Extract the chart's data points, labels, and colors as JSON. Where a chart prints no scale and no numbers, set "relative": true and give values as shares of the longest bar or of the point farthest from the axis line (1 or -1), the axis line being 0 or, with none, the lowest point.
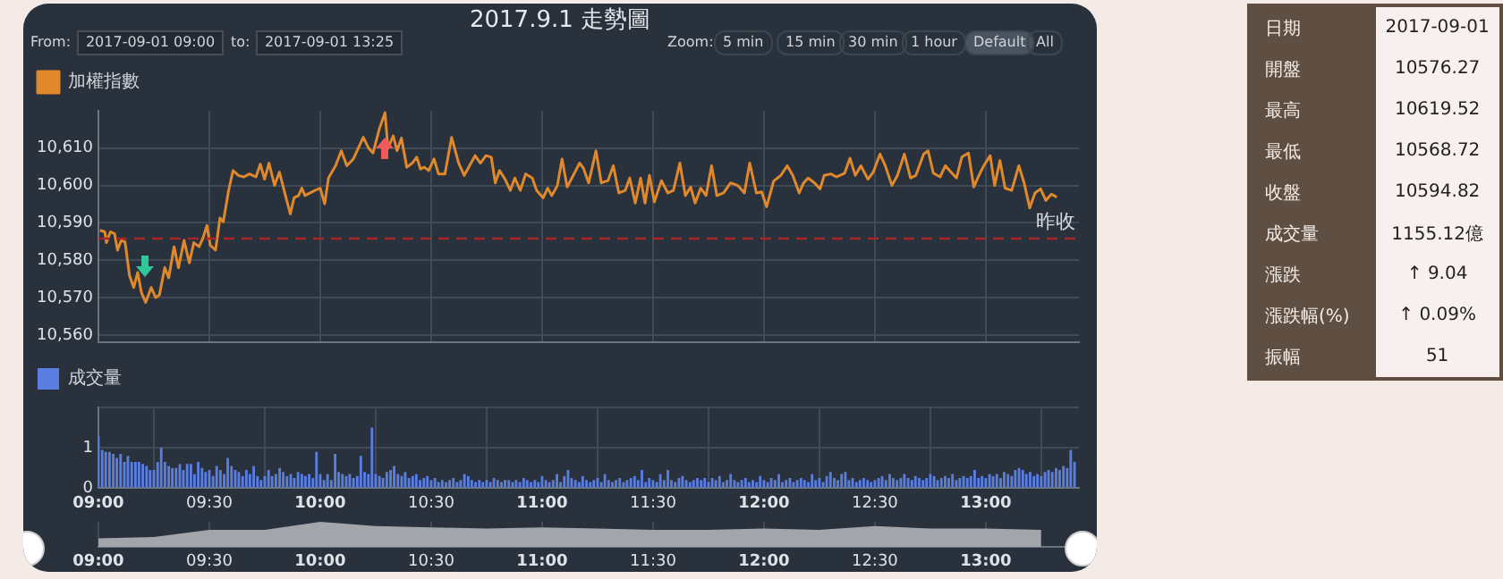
{
  "chart_data": [
    {
      "type": "line",
      "title": "2017.9.1 走勢圖",
      "annotations": [
        "From:",
        "2017-09-01 09:00",
        "to:",
        "2017-09-01 13:25",
        "Zoom:",
        "5 min",
        "15 min",
        "30 min",
        "1 hour",
        "Default",
        "All"
      ],
      "x": [
        9.007,
        9.029,
        9.036,
        9.054,
        9.073,
        9.086,
        9.103,
        9.12,
        9.14,
        9.159,
        9.177,
        9.194,
        9.213,
        9.238,
        9.258,
        9.275,
        9.299,
        9.317,
        9.341,
        9.361,
        9.386,
        9.41,
        9.43,
        9.454,
        9.472,
        9.489,
        9.504,
        9.528,
        9.548,
        9.563,
        9.587,
        9.607,
        9.631,
        9.656,
        9.681,
        9.71,
        9.73,
        9.749,
        9.769,
        9.794,
        9.816,
        9.84,
        9.865,
        9.882,
        9.902,
        9.917,
        9.931,
        9.976,
        10.0,
        10.02,
        10.037,
        10.069,
        10.095,
        10.12,
        10.149,
        10.194,
        10.218,
        10.238,
        10.267,
        10.292,
        10.305,
        10.329,
        10.346,
        10.366,
        10.39,
        10.415,
        10.435,
        10.452,
        10.469,
        10.489,
        10.513,
        10.533,
        10.562,
        10.592,
        10.624,
        10.649,
        10.673,
        10.698,
        10.722,
        10.747,
        10.771,
        10.789,
        10.808,
        10.833,
        10.857,
        10.877,
        10.902,
        10.926,
        10.956,
        10.975,
        11.005,
        11.025,
        11.044,
        11.069,
        11.09,
        11.113,
        11.137,
        11.169,
        11.186,
        11.21,
        11.243,
        11.267,
        11.297,
        11.321,
        11.346,
        11.375,
        11.395,
        11.42,
        11.444,
        11.464,
        11.484,
        11.506,
        11.538,
        11.567,
        11.592,
        11.621,
        11.646,
        11.67,
        11.69,
        11.715,
        11.739,
        11.764,
        11.788,
        11.818,
        11.85,
        11.882,
        11.912,
        11.936,
        11.966,
        11.99,
        12.012,
        12.044,
        12.076,
        12.105,
        12.13,
        12.159,
        12.179,
        12.199,
        12.228,
        12.253,
        12.272,
        12.302,
        12.327,
        12.364,
        12.388,
        12.412,
        12.437,
        12.469,
        12.493,
        12.523,
        12.547,
        12.577,
        12.602,
        12.633,
        12.661,
        12.685,
        12.72,
        12.74,
        12.764,
        12.794,
        12.818,
        12.843,
        12.868,
        12.892,
        12.922,
        12.946,
        12.966,
        12.991,
        13.02,
        13.04,
        13.064,
        13.087,
        13.117,
        13.149,
        13.173,
        13.198,
        13.222,
        13.247,
        13.271,
        13.296,
        13.32
      ],
      "series": [
        {
          "name": "加權指數",
          "color": "#e0892c",
          "values": [
            10588,
            10587.6,
            10584.7,
            10587.6,
            10587.1,
            10582.7,
            10585.3,
            10584.9,
            10576,
            10572.7,
            10576.7,
            10571.3,
            10568.7,
            10572.7,
            10570,
            10570.7,
            10578,
            10575.3,
            10583.6,
            10578,
            10585.3,
            10579.3,
            10584.7,
            10583.6,
            10586,
            10589.3,
            10584,
            10582.7,
            10591.3,
            10590.3,
            10598.7,
            10604,
            10602.7,
            10602.3,
            10603.1,
            10602.3,
            10605.7,
            10601.7,
            10606,
            10600,
            10603.6,
            10598,
            10592.4,
            10596.7,
            10597.3,
            10599.3,
            10597.3,
            10598.7,
            10599.3,
            10595.1,
            10602,
            10605.3,
            10609.3,
            10605.3,
            10607.1,
            10612.9,
            10610,
            10608.7,
            10615.3,
            10619.5,
            10610,
            10613.3,
            10609.3,
            10612.7,
            10604.9,
            10606,
            10607.6,
            10604.4,
            10604.9,
            10604,
            10607.1,
            10603.1,
            10603.1,
            10612.9,
            10606,
            10602.7,
            10605.3,
            10608,
            10606,
            10608,
            10607.6,
            10600.7,
            10604,
            10601.7,
            10598.7,
            10602,
            10598.7,
            10603.1,
            10602,
            10598.7,
            10596.7,
            10599.3,
            10597.3,
            10600,
            10607.1,
            10599.6,
            10602.3,
            10606,
            10604.7,
            10600.7,
            10609.3,
            10600.7,
            10601.3,
            10605.3,
            10598,
            10598.7,
            10602,
            10595.3,
            10602,
            10595.3,
            10602.7,
            10595.6,
            10601.3,
            10598,
            10598.7,
            10606,
            10597.3,
            10599.6,
            10595.3,
            10599.3,
            10597.3,
            10605.3,
            10597.3,
            10598,
            10600.7,
            10600,
            10598,
            10606,
            10598,
            10598.3,
            10594.3,
            10601.2,
            10602.7,
            10605.3,
            10602.7,
            10598,
            10600.7,
            10602,
            10600.7,
            10599.1,
            10602.7,
            10603.1,
            10602.3,
            10603.3,
            10607.3,
            10602.7,
            10605.3,
            10601.7,
            10603.6,
            10608.4,
            10605.3,
            10600,
            10602.7,
            10608.4,
            10602,
            10602.7,
            10608.4,
            10609.3,
            10603.3,
            10602.3,
            10605.3,
            10603.6,
            10602,
            10607.6,
            10608.7,
            10599.6,
            10602.3,
            10605.3,
            10608,
            10600,
            10606.7,
            10599.3,
            10598.7,
            10605.3,
            10600.7,
            10594,
            10598,
            10599.1,
            10596,
            10597.7,
            10596.9
          ]
        }
      ],
      "xlim": [
        9,
        13.42
      ],
      "xticks": [
        {
          "value": 9,
          "label": null
        },
        {
          "value": 9.5,
          "label": null
        },
        {
          "value": 10,
          "label": null
        },
        {
          "value": 10.5,
          "label": null
        },
        {
          "value": 11,
          "label": null
        },
        {
          "value": 11.5,
          "label": null
        },
        {
          "value": 12,
          "label": null
        },
        {
          "value": 12.5,
          "label": null
        },
        {
          "value": 13,
          "label": null
        }
      ],
      "ylim": [
        10558,
        10620
      ],
      "yticks": [
        {
          "value": 10560,
          "label": "10,560"
        },
        {
          "value": 10570,
          "label": "10,570"
        },
        {
          "value": 10580,
          "label": "10,580"
        },
        {
          "value": 10590,
          "label": "10,590"
        },
        {
          "value": 10600,
          "label": "10,600"
        },
        {
          "value": 10610,
          "label": "10,610"
        }
      ],
      "tick_labels": "y",
      "grid": true,
      "legend": "top left",
      "marker": "none",
      "ref_lines": [
        {
          "axis": "y",
          "value": 10585.8,
          "label": "昨收",
          "color": "#a8262a",
          "line_style": "dashed"
        }
      ]
    },
    {
      "type": "bar",
      "x": [
        9,
        9.017,
        9.033,
        9.05,
        9.067,
        9.083,
        9.1,
        9.117,
        9.133,
        9.15,
        9.167,
        9.183,
        9.2,
        9.217,
        9.233,
        9.25,
        9.267,
        9.283,
        9.3,
        9.317,
        9.333,
        9.35,
        9.367,
        9.383,
        9.4,
        9.417,
        9.433,
        9.45,
        9.467,
        9.483,
        9.5,
        9.517,
        9.533,
        9.55,
        9.567,
        9.583,
        9.6,
        9.617,
        9.633,
        9.65,
        9.667,
        9.683,
        9.7,
        9.717,
        9.733,
        9.75,
        9.767,
        9.783,
        9.8,
        9.817,
        9.833,
        9.85,
        9.867,
        9.883,
        9.9,
        9.917,
        9.933,
        9.95,
        9.967,
        9.983,
        10,
        10.017,
        10.033,
        10.05,
        10.067,
        10.083,
        10.1,
        10.117,
        10.133,
        10.15,
        10.167,
        10.183,
        10.2,
        10.217,
        10.233,
        10.25,
        10.267,
        10.283,
        10.3,
        10.317,
        10.333,
        10.35,
        10.367,
        10.383,
        10.4,
        10.417,
        10.433,
        10.45,
        10.467,
        10.483,
        10.5,
        10.517,
        10.533,
        10.55,
        10.567,
        10.583,
        10.6,
        10.617,
        10.633,
        10.65,
        10.667,
        10.683,
        10.7,
        10.717,
        10.733,
        10.75,
        10.767,
        10.783,
        10.8,
        10.817,
        10.833,
        10.85,
        10.867,
        10.883,
        10.9,
        10.917,
        10.933,
        10.95,
        10.967,
        10.983,
        11,
        11.017,
        11.033,
        11.05,
        11.067,
        11.083,
        11.1,
        11.117,
        11.133,
        11.15,
        11.167,
        11.183,
        11.2,
        11.217,
        11.233,
        11.25,
        11.267,
        11.283,
        11.3,
        11.317,
        11.333,
        11.35,
        11.367,
        11.383,
        11.4,
        11.417,
        11.433,
        11.45,
        11.467,
        11.483,
        11.5,
        11.517,
        11.533,
        11.55,
        11.567,
        11.583,
        11.6,
        11.617,
        11.633,
        11.65,
        11.667,
        11.683,
        11.7,
        11.717,
        11.733,
        11.75,
        11.767,
        11.783,
        11.8,
        11.817,
        11.833,
        11.85,
        11.867,
        11.883,
        11.9,
        11.917,
        11.933,
        11.95,
        11.967,
        11.983,
        12,
        12.017,
        12.033,
        12.05,
        12.067,
        12.083,
        12.1,
        12.117,
        12.133,
        12.15,
        12.167,
        12.183,
        12.2,
        12.217,
        12.233,
        12.25,
        12.267,
        12.283,
        12.3,
        12.317,
        12.333,
        12.35,
        12.367,
        12.383,
        12.4,
        12.417,
        12.433,
        12.45,
        12.467,
        12.483,
        12.5,
        12.517,
        12.533,
        12.55,
        12.567,
        12.583,
        12.6,
        12.617,
        12.633,
        12.65,
        12.667,
        12.683,
        12.7,
        12.717,
        12.733,
        12.75,
        12.767,
        12.783,
        12.8,
        12.817,
        12.833,
        12.85,
        12.867,
        12.883,
        12.9,
        12.917,
        12.933,
        12.95,
        12.967,
        12.983,
        13,
        13.017,
        13.033,
        13.05,
        13.067,
        13.083,
        13.1,
        13.117,
        13.133,
        13.15,
        13.167,
        13.183,
        13.2,
        13.217,
        13.233,
        13.25,
        13.267,
        13.283,
        13.3,
        13.317,
        13.333,
        13.35,
        13.367,
        13.383,
        13.4
      ],
      "series": [
        {
          "name": "成交量",
          "color": "#5a7de0",
          "values": [
            1.3,
            0.95,
            0.9,
            0.9,
            0.85,
            0.75,
            0.85,
            0.65,
            0.8,
            0.65,
            0.65,
            0.65,
            0.6,
            0.55,
            0.45,
            0.45,
            0.65,
            1.0,
            0.65,
            0.55,
            0.5,
            0.5,
            0.6,
            0.45,
            0.6,
            0.6,
            0.35,
            0.65,
            0.5,
            0.4,
            0.45,
            0.3,
            0.55,
            0.45,
            0.35,
            0.75,
            0.55,
            0.45,
            0.4,
            0.3,
            0.45,
            0.35,
            0.55,
            0.3,
            0.2,
            0.3,
            0.45,
            0.3,
            0.35,
            0.5,
            0.4,
            0.3,
            0.35,
            0.25,
            0.4,
            0.35,
            0.3,
            0.35,
            0.25,
            0.9,
            0.35,
            0.2,
            0.35,
            0.2,
            0.85,
            0.4,
            0.35,
            0.3,
            0.35,
            0.25,
            0.3,
            0.8,
            0.4,
            0.35,
            1.5,
            0.35,
            0.3,
            0.25,
            0.4,
            0.45,
            0.55,
            0.35,
            0.3,
            0.4,
            0.25,
            0.3,
            0.35,
            0.2,
            0.25,
            0.3,
            0.2,
            0.25,
            0.15,
            0.2,
            0.15,
            0.2,
            0.25,
            0.15,
            0.2,
            0.35,
            0.3,
            0.2,
            0.15,
            0.2,
            0.15,
            0.2,
            0.15,
            0.25,
            0.2,
            0.15,
            0.2,
            0.2,
            0.15,
            0.2,
            0.15,
            0.25,
            0.2,
            0.15,
            0.2,
            0.15,
            0.3,
            0.2,
            0.15,
            0.2,
            0.35,
            0.15,
            0.3,
            0.45,
            0.25,
            0.2,
            0.15,
            0.3,
            0.2,
            0.15,
            0.2,
            0.25,
            0.15,
            0.35,
            0.2,
            0.15,
            0.2,
            0.25,
            0.15,
            0.2,
            0.25,
            0.3,
            0.2,
            0.45,
            0.15,
            0.25,
            0.2,
            0.15,
            0.35,
            0.2,
            0.45,
            0.2,
            0.15,
            0.25,
            0.3,
            0.2,
            0.15,
            0.2,
            0.25,
            0.2,
            0.25,
            0.15,
            0.25,
            0.2,
            0.3,
            0.15,
            0.2,
            0.35,
            0.2,
            0.15,
            0.2,
            0.25,
            0.15,
            0.2,
            0.15,
            0.3,
            0.2,
            0.15,
            0.25,
            0.2,
            0.35,
            0.15,
            0.2,
            0.25,
            0.15,
            0.2,
            0.25,
            0.2,
            0.15,
            0.35,
            0.2,
            0.25,
            0.15,
            0.3,
            0.4,
            0.25,
            0.2,
            0.35,
            0.4,
            0.2,
            0.25,
            0.15,
            0.2,
            0.25,
            0.2,
            0.15,
            0.2,
            0.25,
            0.3,
            0.2,
            0.35,
            0.25,
            0.2,
            0.25,
            0.35,
            0.25,
            0.2,
            0.3,
            0.25,
            0.2,
            0.25,
            0.35,
            0.3,
            0.2,
            0.25,
            0.3,
            0.25,
            0.35,
            0.2,
            0.25,
            0.3,
            0.25,
            0.3,
            0.45,
            0.25,
            0.3,
            0.25,
            0.35,
            0.3,
            0.35,
            0.25,
            0.4,
            0.35,
            0.3,
            0.45,
            0.5,
            0.45,
            0.35,
            0.4,
            0.3,
            0.35,
            0.3,
            0.4,
            0.45,
            0.4,
            0.5,
            0.45,
            0.55,
            0.5,
            0.95,
            0.65
          ]
        }
      ],
      "xlim": [
        9,
        13.42
      ],
      "xticks": [
        {
          "value": 9,
          "label": "09:00"
        },
        {
          "value": 9.5,
          "label": "09:30"
        },
        {
          "value": 10,
          "label": "10:00"
        },
        {
          "value": 10.5,
          "label": "10:30"
        },
        {
          "value": 11,
          "label": "11:00"
        },
        {
          "value": 11.5,
          "label": "11:30"
        },
        {
          "value": 12,
          "label": "12:00"
        },
        {
          "value": 12.5,
          "label": "12:30"
        },
        {
          "value": 13,
          "label": "13:00"
        }
      ],
      "ylim": [
        0,
        2
      ],
      "yticks": [
        0,
        1,
        {
          "value": 2,
          "label": null
        }
      ],
      "grid": true,
      "legend": "top left"
    },
    {
      "type": "area",
      "relative": true,
      "color": "#a2a5aa",
      "x": [
        9,
        9.25,
        9.5,
        9.75,
        10,
        10.25,
        10.5,
        10.75,
        11,
        11.25,
        11.5,
        11.75,
        12,
        12.25,
        12.5,
        12.75,
        13,
        13.25
      ],
      "values": [
        0.34,
        0.39,
        0.68,
        0.68,
        1,
        0.83,
        0.78,
        0.73,
        0.78,
        0.73,
        0.68,
        0.68,
        0.73,
        0.68,
        0.83,
        0.73,
        0.73,
        0.68
      ],
      "xlim": [
        9,
        13.42
      ],
      "xticks": [
        {
          "value": 9,
          "label": "09:00"
        },
        {
          "value": 9.5,
          "label": "09:30"
        },
        {
          "value": 10,
          "label": "10:00"
        },
        {
          "value": 10.5,
          "label": "10:30"
        },
        {
          "value": 11,
          "label": "11:00"
        },
        {
          "value": 11.5,
          "label": "11:30"
        },
        {
          "value": 12,
          "label": "12:00"
        },
        {
          "value": 12.5,
          "label": "12:30"
        },
        {
          "value": 13,
          "label": "13:00"
        }
      ],
      "tick_labels": "x",
      "grid": "x"
    },
    {
      "type": "other",
      "categories": [
        "日期",
        "開盤",
        "最高",
        "最低",
        "收盤",
        "成交量",
        "漲跌",
        "漲跌幅(%)",
        "振幅"
      ],
      "value_labels": [
        "2017-09-01",
        "10576.27",
        "10619.52",
        "10568.72",
        "10594.82",
        "1155.12億",
        "↑ 9.04",
        "↑ 0.09%",
        "51"
      ]
    }
  ]
}
